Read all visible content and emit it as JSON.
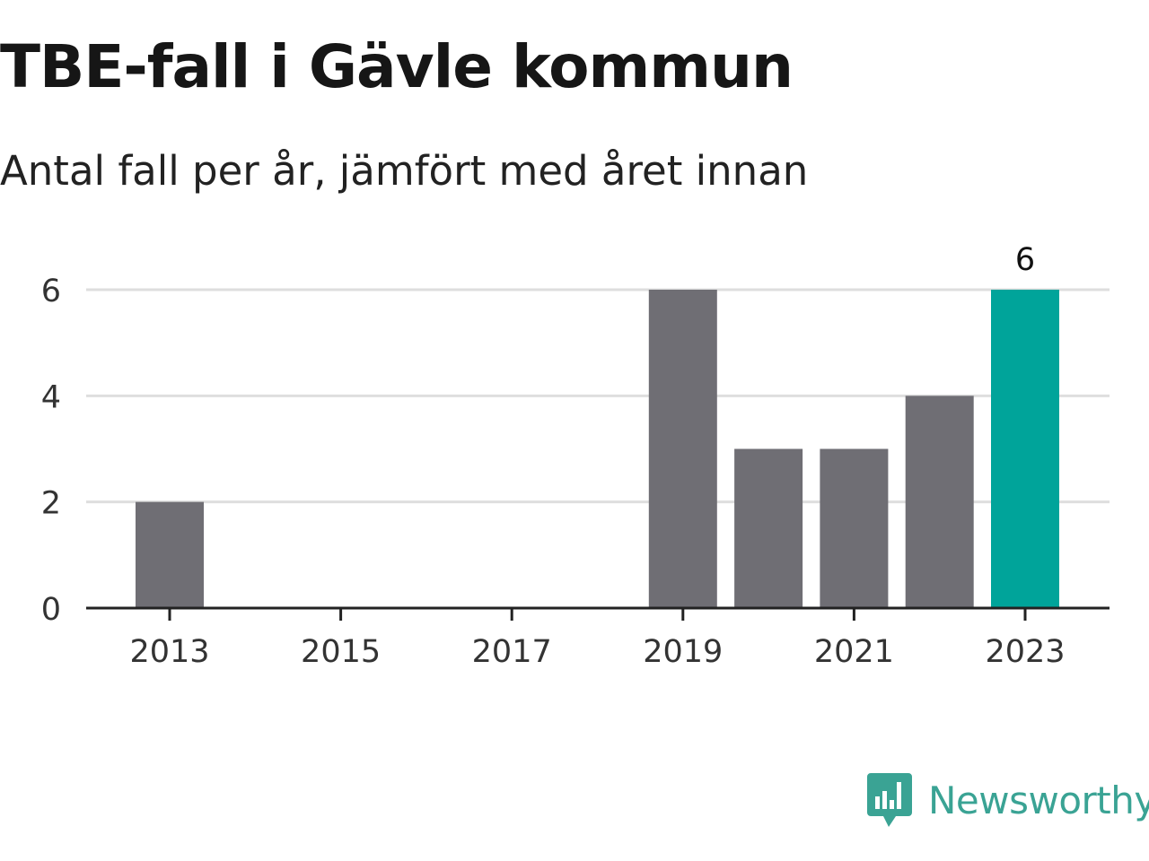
{
  "header": {
    "title": "TBE-fall i Gävle kommun",
    "subtitle": "Antal fall per år, jämfört med året innan"
  },
  "brand": {
    "name": "Newsworthy",
    "icon": "newsworthy-logo-icon",
    "color": "#3aa394"
  },
  "colors": {
    "bar": "#6f6e74",
    "highlight": "#00a49a",
    "grid": "#dedede",
    "axis": "#222222"
  },
  "chart_data": {
    "type": "bar",
    "categories": [
      "2013",
      "2014",
      "2015",
      "2016",
      "2017",
      "2018",
      "2019",
      "2020",
      "2021",
      "2022",
      "2023"
    ],
    "values": [
      2,
      0,
      0,
      0,
      0,
      0,
      6,
      3,
      3,
      4,
      6
    ],
    "x_tick_labels": [
      "2013",
      "2015",
      "2017",
      "2019",
      "2021",
      "2023"
    ],
    "y_ticks": [
      0,
      2,
      4,
      6
    ],
    "ylim": [
      0,
      6
    ],
    "highlight_category": "2023",
    "data_labels": [
      {
        "category": "2023",
        "text": "6"
      }
    ],
    "grid": true,
    "legend": "none"
  }
}
